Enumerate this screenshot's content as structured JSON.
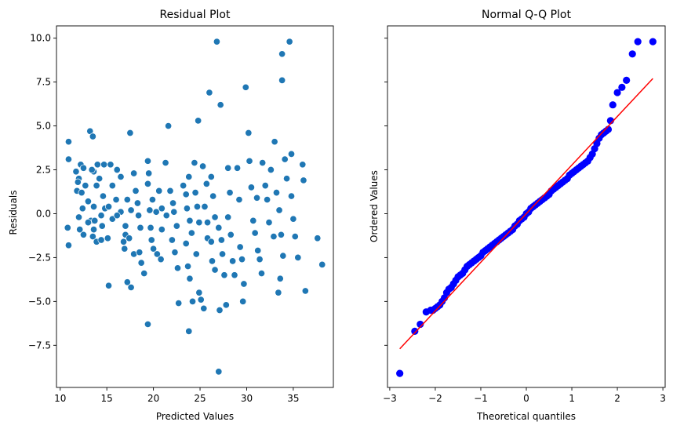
{
  "chart_data": [
    {
      "type": "scatter",
      "title": "Residual Plot",
      "xlabel": "Predicted Values",
      "ylabel": "Residuals",
      "xlim": [
        9.6,
        39.3
      ],
      "ylim": [
        -9.9,
        10.7
      ],
      "xticks": [
        10,
        15,
        20,
        25,
        30,
        35
      ],
      "xtick_labels": [
        "10",
        "15",
        "20",
        "25",
        "30",
        "35"
      ],
      "yticks": [
        -7.5,
        -5.0,
        -2.5,
        0.0,
        2.5,
        5.0,
        7.5,
        10.0
      ],
      "ytick_labels": [
        "−7.5",
        "−5.0",
        "−2.5",
        "0.0",
        "2.5",
        "5.0",
        "7.5",
        "10.0"
      ],
      "grid": false,
      "point_color": "#1f77b4",
      "points": [
        [
          10.9,
          4.1
        ],
        [
          10.9,
          3.1
        ],
        [
          10.8,
          -0.8
        ],
        [
          10.9,
          -1.8
        ],
        [
          11.7,
          2.4
        ],
        [
          12.0,
          2.0
        ],
        [
          12.2,
          2.8
        ],
        [
          12.5,
          2.6
        ],
        [
          11.8,
          1.3
        ],
        [
          12.3,
          1.2
        ],
        [
          11.9,
          1.8
        ],
        [
          13.2,
          4.7
        ],
        [
          13.5,
          4.4
        ],
        [
          13.6,
          2.4
        ],
        [
          13.4,
          2.5
        ],
        [
          12.7,
          1.6
        ],
        [
          13.0,
          0.7
        ],
        [
          12.4,
          0.3
        ],
        [
          13.6,
          0.4
        ],
        [
          12.0,
          -0.2
        ],
        [
          13.3,
          -0.4
        ],
        [
          13.7,
          -0.4
        ],
        [
          14.0,
          2.8
        ],
        [
          14.7,
          2.8
        ],
        [
          14.2,
          2.0
        ],
        [
          14.6,
          1.0
        ],
        [
          13.9,
          1.6
        ],
        [
          13.0,
          -0.5
        ],
        [
          12.1,
          -0.9
        ],
        [
          12.5,
          -1.2
        ],
        [
          13.5,
          -1.3
        ],
        [
          13.6,
          -0.9
        ],
        [
          13.9,
          -1.6
        ],
        [
          14.4,
          -0.1
        ],
        [
          14.8,
          0.3
        ],
        [
          15.2,
          0.4
        ],
        [
          15.6,
          -0.3
        ],
        [
          14.5,
          -0.7
        ],
        [
          14.4,
          -1.5
        ],
        [
          15.1,
          -1.4
        ],
        [
          15.4,
          2.8
        ],
        [
          15.6,
          1.6
        ],
        [
          16.1,
          2.5
        ],
        [
          16.5,
          2.1
        ],
        [
          16.0,
          0.8
        ],
        [
          16.5,
          0.1
        ],
        [
          16.1,
          -0.1
        ],
        [
          16.8,
          -1.6
        ],
        [
          17.0,
          -1.2
        ],
        [
          16.9,
          -2.0
        ],
        [
          17.5,
          4.6
        ],
        [
          17.2,
          0.8
        ],
        [
          17.6,
          0.2
        ],
        [
          17.0,
          -0.7
        ],
        [
          17.4,
          -1.4
        ],
        [
          17.9,
          -2.3
        ],
        [
          17.2,
          -3.9
        ],
        [
          17.6,
          -4.2
        ],
        [
          15.2,
          -4.1
        ],
        [
          17.9,
          2.3
        ],
        [
          18.1,
          1.3
        ],
        [
          18.3,
          0.6
        ],
        [
          18.4,
          -0.1
        ],
        [
          18.6,
          -0.8
        ],
        [
          18.5,
          -2.2
        ],
        [
          18.7,
          -2.8
        ],
        [
          19.0,
          -3.4
        ],
        [
          19.4,
          3.0
        ],
        [
          19.5,
          2.3
        ],
        [
          19.4,
          1.7
        ],
        [
          19.9,
          0.8
        ],
        [
          19.6,
          0.2
        ],
        [
          19.7,
          -0.8
        ],
        [
          19.8,
          -1.5
        ],
        [
          20.0,
          -2.0
        ],
        [
          20.4,
          -2.3
        ],
        [
          20.8,
          -2.6
        ],
        [
          19.4,
          -6.3
        ],
        [
          20.3,
          0.1
        ],
        [
          20.6,
          1.3
        ],
        [
          20.9,
          0.3
        ],
        [
          20.9,
          -0.9
        ],
        [
          21.3,
          2.9
        ],
        [
          21.6,
          5.0
        ],
        [
          21.8,
          1.3
        ],
        [
          21.4,
          -0.1
        ],
        [
          22.1,
          0.6
        ],
        [
          22.2,
          0.1
        ],
        [
          22.5,
          -0.7
        ],
        [
          22.0,
          -1.5
        ],
        [
          22.3,
          -2.2
        ],
        [
          22.6,
          -3.1
        ],
        [
          22.7,
          -5.1
        ],
        [
          23.2,
          1.6
        ],
        [
          23.5,
          1.1
        ],
        [
          23.8,
          2.1
        ],
        [
          23.6,
          0.3
        ],
        [
          23.9,
          -0.4
        ],
        [
          24.1,
          -1.1
        ],
        [
          23.5,
          -1.7
        ],
        [
          23.7,
          -3.0
        ],
        [
          23.9,
          -3.7
        ],
        [
          24.2,
          -5.0
        ],
        [
          23.8,
          -6.7
        ],
        [
          24.4,
          2.9
        ],
        [
          24.5,
          1.2
        ],
        [
          24.7,
          0.4
        ],
        [
          24.9,
          -0.5
        ],
        [
          24.8,
          5.3
        ],
        [
          24.6,
          -2.3
        ],
        [
          24.9,
          -4.5
        ],
        [
          25.4,
          -5.4
        ],
        [
          25.1,
          -4.9
        ],
        [
          25.3,
          2.7
        ],
        [
          25.7,
          1.7
        ],
        [
          25.5,
          0.4
        ],
        [
          25.8,
          -0.5
        ],
        [
          25.8,
          -1.4
        ],
        [
          26.0,
          6.9
        ],
        [
          26.2,
          2.1
        ],
        [
          26.4,
          1.0
        ],
        [
          26.6,
          -0.2
        ],
        [
          26.2,
          -1.6
        ],
        [
          26.3,
          -2.7
        ],
        [
          26.6,
          -3.2
        ],
        [
          26.8,
          9.8
        ],
        [
          27.0,
          -0.8
        ],
        [
          27.2,
          6.2
        ],
        [
          27.3,
          -1.5
        ],
        [
          27.4,
          -2.3
        ],
        [
          27.6,
          -3.5
        ],
        [
          27.8,
          -5.2
        ],
        [
          27.1,
          -5.5
        ],
        [
          27.0,
          -9.0
        ],
        [
          28.0,
          2.6
        ],
        [
          28.2,
          1.2
        ],
        [
          28.0,
          -0.2
        ],
        [
          28.3,
          -1.2
        ],
        [
          28.5,
          -2.7
        ],
        [
          28.7,
          -3.5
        ],
        [
          29.0,
          2.6
        ],
        [
          29.2,
          0.8
        ],
        [
          29.3,
          -1.9
        ],
        [
          29.5,
          -2.6
        ],
        [
          29.7,
          -4.0
        ],
        [
          29.6,
          -5.0
        ],
        [
          29.9,
          7.2
        ],
        [
          30.2,
          4.6
        ],
        [
          30.3,
          3.0
        ],
        [
          30.5,
          1.5
        ],
        [
          30.7,
          -0.4
        ],
        [
          30.9,
          -1.1
        ],
        [
          31.1,
          0.9
        ],
        [
          31.2,
          -2.1
        ],
        [
          31.4,
          -2.6
        ],
        [
          31.6,
          -3.4
        ],
        [
          31.7,
          2.9
        ],
        [
          32.0,
          1.6
        ],
        [
          32.2,
          0.8
        ],
        [
          32.4,
          -0.5
        ],
        [
          32.6,
          2.5
        ],
        [
          32.9,
          -1.3
        ],
        [
          33.0,
          4.1
        ],
        [
          33.2,
          1.2
        ],
        [
          33.5,
          0.2
        ],
        [
          33.7,
          -1.2
        ],
        [
          33.9,
          -2.4
        ],
        [
          33.6,
          -3.7
        ],
        [
          33.4,
          -4.5
        ],
        [
          33.8,
          9.1
        ],
        [
          33.8,
          7.6
        ],
        [
          34.1,
          3.1
        ],
        [
          34.3,
          2.0
        ],
        [
          34.6,
          9.8
        ],
        [
          34.8,
          3.4
        ],
        [
          34.8,
          1.0
        ],
        [
          35.0,
          -0.3
        ],
        [
          35.2,
          -1.3
        ],
        [
          35.5,
          -2.5
        ],
        [
          36.0,
          2.8
        ],
        [
          36.1,
          1.9
        ],
        [
          36.3,
          -4.4
        ],
        [
          37.6,
          -1.4
        ],
        [
          38.1,
          -2.9
        ]
      ]
    },
    {
      "type": "scatter",
      "title": "Normal Q-Q Plot",
      "xlabel": "Theoretical quantiles",
      "ylabel": "Ordered Values",
      "xlim": [
        -3.05,
        3.05
      ],
      "ylim": [
        -9.9,
        10.7
      ],
      "xticks": [
        -3,
        -2,
        -1,
        0,
        1,
        2,
        3
      ],
      "xtick_labels": [
        "−3",
        "−2",
        "−1",
        "0",
        "1",
        "2",
        "3"
      ],
      "yticks": [
        -7.5,
        -5.0,
        -2.5,
        0.0,
        2.5,
        5.0,
        7.5,
        10.0
      ],
      "ytick_labels": [],
      "grid": false,
      "point_color": "#0000ff",
      "line_color": "#ff0000",
      "fit_line": {
        "x": [
          -2.78,
          2.78
        ],
        "y": [
          -7.7,
          7.7
        ]
      },
      "points": [
        [
          -2.78,
          -9.1
        ],
        [
          -2.45,
          -6.7
        ],
        [
          -2.33,
          -6.3
        ],
        [
          -2.2,
          -5.6
        ],
        [
          -2.1,
          -5.5
        ],
        [
          -2.05,
          -5.5
        ],
        [
          -2.0,
          -5.4
        ],
        [
          -1.95,
          -5.3
        ],
        [
          -1.9,
          -5.2
        ],
        [
          -1.85,
          -5.0
        ],
        [
          -1.8,
          -4.8
        ],
        [
          -1.75,
          -4.5
        ],
        [
          -1.7,
          -4.3
        ],
        [
          -1.65,
          -4.2
        ],
        [
          -1.6,
          -4.0
        ],
        [
          -1.55,
          -3.8
        ],
        [
          -1.5,
          -3.6
        ],
        [
          -1.45,
          -3.5
        ],
        [
          -1.4,
          -3.4
        ],
        [
          -1.35,
          -3.2
        ],
        [
          -1.3,
          -3.0
        ],
        [
          -1.25,
          -2.9
        ],
        [
          -1.2,
          -2.8
        ],
        [
          -1.15,
          -2.7
        ],
        [
          -1.1,
          -2.6
        ],
        [
          -1.05,
          -2.5
        ],
        [
          -1.0,
          -2.4
        ],
        [
          -0.95,
          -2.2
        ],
        [
          -0.9,
          -2.1
        ],
        [
          -0.85,
          -2.0
        ],
        [
          -0.8,
          -1.9
        ],
        [
          -0.75,
          -1.8
        ],
        [
          -0.7,
          -1.7
        ],
        [
          -0.65,
          -1.6
        ],
        [
          -0.6,
          -1.5
        ],
        [
          -0.55,
          -1.4
        ],
        [
          -0.5,
          -1.3
        ],
        [
          -0.45,
          -1.2
        ],
        [
          -0.4,
          -1.1
        ],
        [
          -0.35,
          -1.0
        ],
        [
          -0.3,
          -0.9
        ],
        [
          -0.25,
          -0.7
        ],
        [
          -0.2,
          -0.6
        ],
        [
          -0.15,
          -0.4
        ],
        [
          -0.1,
          -0.3
        ],
        [
          -0.05,
          -0.2
        ],
        [
          0.0,
          0.0
        ],
        [
          0.05,
          0.1
        ],
        [
          0.1,
          0.3
        ],
        [
          0.15,
          0.4
        ],
        [
          0.2,
          0.5
        ],
        [
          0.25,
          0.6
        ],
        [
          0.3,
          0.7
        ],
        [
          0.35,
          0.8
        ],
        [
          0.4,
          0.9
        ],
        [
          0.45,
          1.0
        ],
        [
          0.5,
          1.1
        ],
        [
          0.55,
          1.3
        ],
        [
          0.6,
          1.4
        ],
        [
          0.65,
          1.5
        ],
        [
          0.7,
          1.6
        ],
        [
          0.75,
          1.7
        ],
        [
          0.8,
          1.8
        ],
        [
          0.85,
          1.9
        ],
        [
          0.9,
          2.0
        ],
        [
          0.95,
          2.2
        ],
        [
          1.0,
          2.3
        ],
        [
          1.05,
          2.4
        ],
        [
          1.1,
          2.5
        ],
        [
          1.15,
          2.6
        ],
        [
          1.2,
          2.7
        ],
        [
          1.25,
          2.8
        ],
        [
          1.3,
          2.9
        ],
        [
          1.35,
          3.0
        ],
        [
          1.4,
          3.2
        ],
        [
          1.45,
          3.4
        ],
        [
          1.5,
          3.7
        ],
        [
          1.55,
          4.0
        ],
        [
          1.6,
          4.3
        ],
        [
          1.65,
          4.5
        ],
        [
          1.7,
          4.6
        ],
        [
          1.75,
          4.7
        ],
        [
          1.8,
          4.8
        ],
        [
          1.85,
          5.3
        ],
        [
          1.9,
          6.2
        ],
        [
          2.0,
          6.9
        ],
        [
          2.1,
          7.2
        ],
        [
          2.2,
          7.6
        ],
        [
          2.33,
          9.1
        ],
        [
          2.45,
          9.8
        ],
        [
          2.78,
          9.8
        ]
      ]
    }
  ]
}
